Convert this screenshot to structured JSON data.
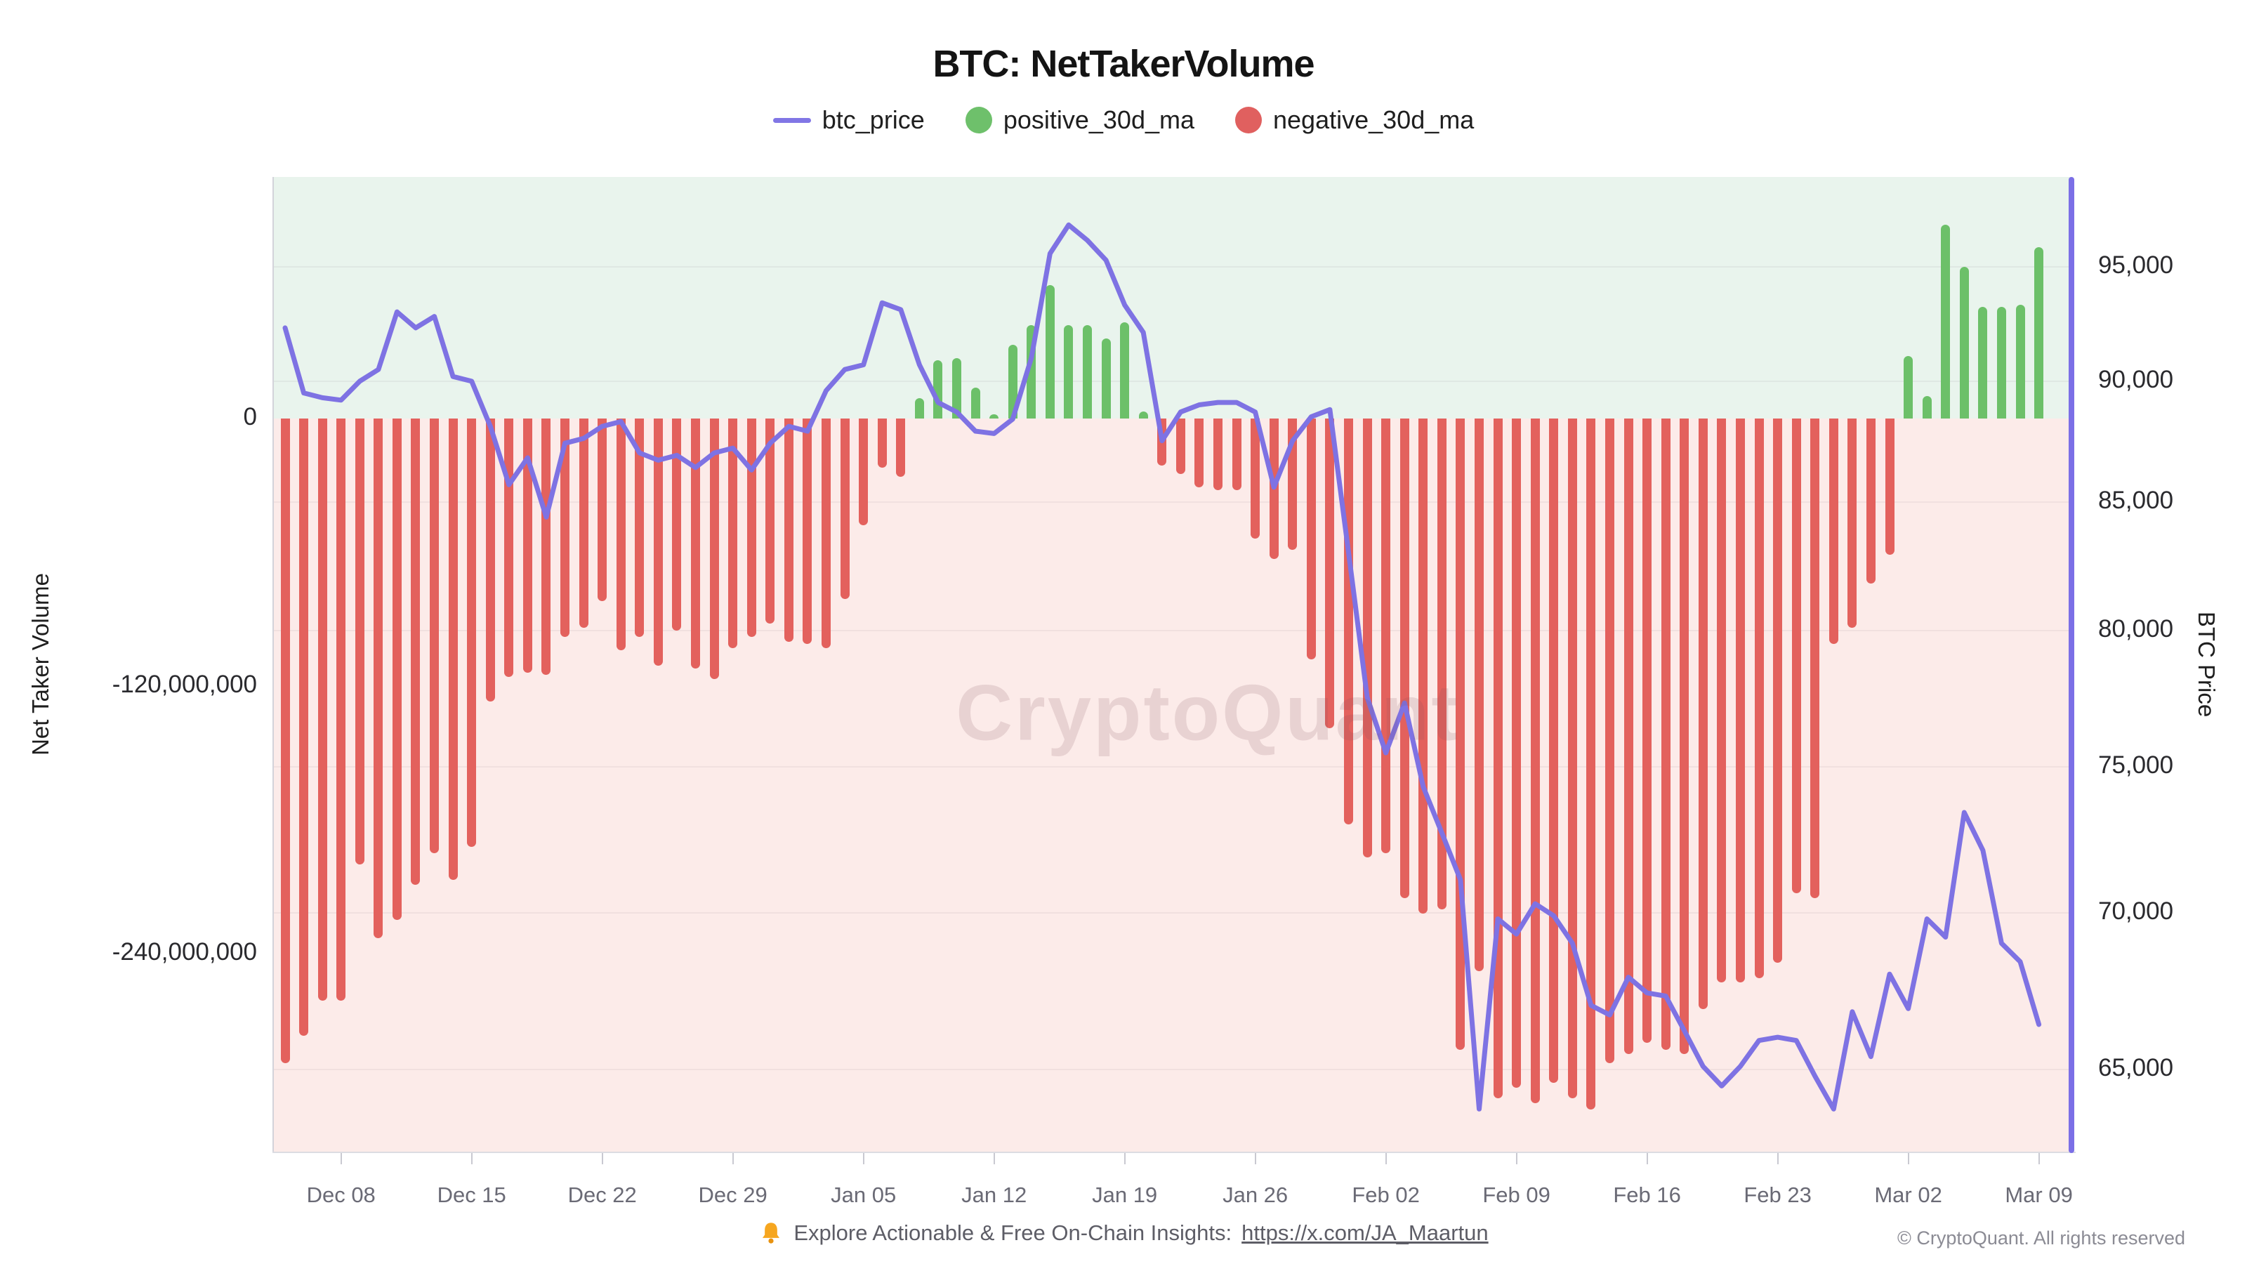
{
  "title": "BTC: NetTakerVolume",
  "watermark": "CryptoQuant",
  "colors": {
    "price_line": "#7e72e3",
    "positive_bar": "#6cc069",
    "negative_bar": "#e3615d",
    "positive_bg": "#e9f4ed",
    "negative_bg": "#fcebe9",
    "right_axis_line": "#7b6fe6"
  },
  "legend": {
    "items": [
      {
        "label": "btc_price",
        "marker": "line",
        "color": "#8176e5"
      },
      {
        "label": "positive_30d_ma",
        "marker": "circle",
        "color": "#6ec06b"
      },
      {
        "label": "negative_30d_ma",
        "marker": "circle",
        "color": "#e0605f"
      }
    ]
  },
  "left_axis": {
    "title": "Net Taker Volume",
    "ticks": [
      {
        "label": "0",
        "value": 0
      },
      {
        "label": "-120,000,000",
        "value": -120000000
      },
      {
        "label": "-240,000,000",
        "value": -240000000
      }
    ]
  },
  "right_axis": {
    "title": "BTC Price",
    "scale": "log",
    "ticks": [
      {
        "label": "95,000",
        "value": 95000
      },
      {
        "label": "90,000",
        "value": 90000
      },
      {
        "label": "85,000",
        "value": 85000
      },
      {
        "label": "80,000",
        "value": 80000
      },
      {
        "label": "75,000",
        "value": 75000
      },
      {
        "label": "70,000",
        "value": 70000
      },
      {
        "label": "65,000",
        "value": 65000
      }
    ]
  },
  "x_axis": {
    "tick_labels": [
      "Dec 08",
      "Dec 15",
      "Dec 22",
      "Dec 29",
      "Jan 05",
      "Jan 12",
      "Jan 19",
      "Jan 26",
      "Feb 02",
      "Feb 09",
      "Feb 16",
      "Feb 23",
      "Mar 02",
      "Mar 09"
    ]
  },
  "footer": {
    "icon": "bell-icon",
    "text": "Explore Actionable & Free On-Chain Insights:",
    "link": "https://x.com/JA_Maartun",
    "copyright": "© CryptoQuant. All rights reserved"
  },
  "chart_data": {
    "type": "mixed",
    "series_types": {
      "btc_price": "line",
      "net_taker_volume_30d_ma": "bar"
    },
    "volume_axis_range": [
      -329000000,
      108000000
    ],
    "price_axis_range_log": [
      62500,
      99000
    ],
    "grid": "horizontal lines at price ticks",
    "legend_position": "top center",
    "dates": [
      "Dec 05",
      "Dec 06",
      "Dec 07",
      "Dec 08",
      "Dec 09",
      "Dec 10",
      "Dec 11",
      "Dec 12",
      "Dec 13",
      "Dec 14",
      "Dec 15",
      "Dec 16",
      "Dec 17",
      "Dec 18",
      "Dec 19",
      "Dec 20",
      "Dec 21",
      "Dec 22",
      "Dec 23",
      "Dec 24",
      "Dec 25",
      "Dec 26",
      "Dec 27",
      "Dec 28",
      "Dec 29",
      "Dec 30",
      "Dec 31",
      "Jan 01",
      "Jan 02",
      "Jan 03",
      "Jan 04",
      "Jan 05",
      "Jan 06",
      "Jan 07",
      "Jan 08",
      "Jan 09",
      "Jan 10",
      "Jan 11",
      "Jan 12",
      "Jan 13",
      "Jan 14",
      "Jan 15",
      "Jan 16",
      "Jan 17",
      "Jan 18",
      "Jan 19",
      "Jan 20",
      "Jan 21",
      "Jan 22",
      "Jan 23",
      "Jan 24",
      "Jan 25",
      "Jan 26",
      "Jan 27",
      "Jan 28",
      "Jan 29",
      "Jan 30",
      "Jan 31",
      "Feb 01",
      "Feb 02",
      "Feb 03",
      "Feb 04",
      "Feb 05",
      "Feb 06",
      "Feb 07",
      "Feb 08",
      "Feb 09",
      "Feb 10",
      "Feb 11",
      "Feb 12",
      "Feb 13",
      "Feb 14",
      "Feb 15",
      "Feb 16",
      "Feb 17",
      "Feb 18",
      "Feb 19",
      "Feb 20",
      "Feb 21",
      "Feb 22",
      "Feb 23",
      "Feb 24",
      "Feb 25",
      "Feb 26",
      "Feb 27",
      "Feb 28",
      "Mar 01",
      "Mar 02",
      "Mar 03",
      "Mar 04",
      "Mar 05",
      "Mar 06",
      "Mar 07",
      "Mar 08",
      "Mar 09"
    ],
    "net_taker_volume_30d_ma_millions": [
      -289,
      -277,
      -261,
      -261,
      -200,
      -233,
      -225,
      -209,
      -195,
      -207,
      -192,
      -127,
      -116,
      -114,
      -115,
      -98,
      -94,
      -82,
      -104,
      -98,
      -111,
      -95,
      -112,
      -117,
      -103,
      -98,
      -92,
      -100,
      -101,
      -103,
      -81,
      -48,
      -22,
      -26,
      9,
      26,
      27,
      14,
      2,
      33,
      42,
      60,
      42,
      42,
      36,
      43,
      3,
      -21,
      -25,
      -31,
      -32,
      -32,
      -54,
      -63,
      -59,
      -108,
      -139,
      -182,
      -197,
      -195,
      -215,
      -222,
      -220,
      -283,
      -248,
      -305,
      -300,
      -307,
      -298,
      -305,
      -310,
      -289,
      -285,
      -280,
      -283,
      -285,
      -265,
      -253,
      -253,
      -251,
      -244,
      -213,
      -215,
      -101,
      -94,
      -74,
      -61,
      28,
      10,
      87,
      68,
      50,
      50,
      51,
      77
    ],
    "btc_price": [
      92300,
      89500,
      89300,
      89200,
      90000,
      90500,
      93000,
      92300,
      92800,
      90200,
      90000,
      88100,
      85700,
      86800,
      84400,
      87400,
      87600,
      88100,
      88300,
      87000,
      86700,
      86900,
      86400,
      87000,
      87200,
      86300,
      87400,
      88100,
      87900,
      89600,
      90500,
      90700,
      93400,
      93100,
      90700,
      89100,
      88700,
      87900,
      87800,
      88400,
      91000,
      95600,
      96900,
      96200,
      95300,
      93300,
      92100,
      87500,
      88700,
      89000,
      89100,
      89100,
      88700,
      85600,
      87500,
      88500,
      88800,
      83000,
      77500,
      75500,
      77300,
      74300,
      72700,
      71100,
      63800,
      69800,
      69300,
      70300,
      69900,
      69000,
      67000,
      66700,
      67900,
      67400,
      67300,
      66200,
      65100,
      64500,
      65100,
      65900,
      66000,
      65900,
      64800,
      63800,
      66800,
      65400,
      68000,
      66900,
      69800,
      69200,
      73400,
      72100,
      69000,
      68400,
      66400
    ]
  }
}
